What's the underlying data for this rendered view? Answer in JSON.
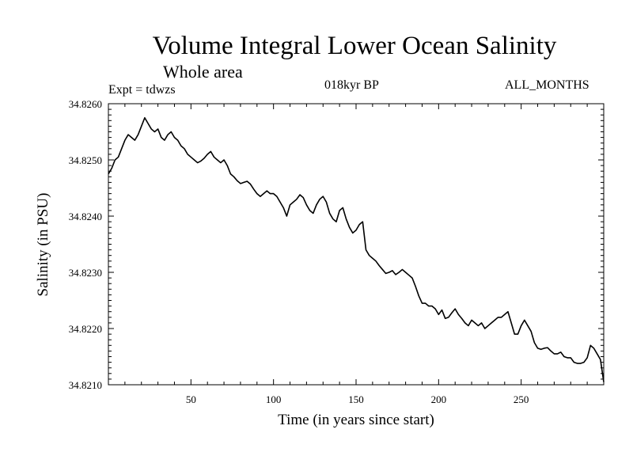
{
  "header": {
    "title": "Volume Integral Lower Ocean Salinity",
    "subtitle": "Whole area",
    "experiment": "Expt = tdwzs",
    "period": "018kyr BP",
    "months": "ALL_MONTHS"
  },
  "chart_data": {
    "type": "line",
    "title": "Volume Integral Lower Ocean Salinity",
    "xlabel": "Time (in years since start)",
    "ylabel": "Salinity (in PSU)",
    "xlim": [
      0,
      300
    ],
    "ylim": [
      34.821,
      34.826
    ],
    "x_ticks": [
      50,
      100,
      150,
      200,
      250
    ],
    "y_ticks": [
      34.821,
      34.822,
      34.823,
      34.824,
      34.825,
      34.826
    ],
    "y_tick_labels": [
      "34.8210",
      "34.8220",
      "34.8230",
      "34.8240",
      "34.8250",
      "34.8260"
    ],
    "grid": false,
    "series": [
      {
        "x": [
          0,
          2,
          4,
          6,
          8,
          10,
          12,
          14,
          16,
          18,
          20,
          22,
          24,
          26,
          28,
          30,
          32,
          34,
          36,
          38,
          40,
          42,
          44,
          46,
          48,
          50,
          52,
          54,
          56,
          58,
          60,
          62,
          64,
          66,
          68,
          70,
          72,
          74,
          76,
          78,
          80,
          82,
          84,
          86,
          88,
          90,
          92,
          94,
          96,
          98,
          100,
          102,
          104,
          106,
          108,
          110,
          112,
          114,
          116,
          118,
          120,
          122,
          124,
          126,
          128,
          130,
          132,
          134,
          136,
          138,
          140,
          142,
          144,
          146,
          148,
          150,
          152,
          154,
          156,
          158,
          160,
          162,
          164,
          166,
          168,
          170,
          172,
          174,
          176,
          178,
          180,
          182,
          184,
          186,
          188,
          190,
          192,
          194,
          196,
          198,
          200,
          202,
          204,
          206,
          208,
          210,
          212,
          214,
          216,
          218,
          220,
          222,
          224,
          226,
          228,
          230,
          232,
          234,
          236,
          238,
          240,
          242,
          244,
          246,
          248,
          250,
          252,
          254,
          256,
          258,
          260,
          262,
          264,
          266,
          268,
          270,
          272,
          274,
          276,
          278,
          280,
          282,
          284,
          286,
          288,
          290,
          292,
          294,
          296,
          298,
          300
        ],
        "values": [
          34.82475,
          34.82485,
          34.825,
          34.82505,
          34.8252,
          34.82535,
          34.82545,
          34.8254,
          34.82535,
          34.82545,
          34.8256,
          34.82575,
          34.82565,
          34.82555,
          34.8255,
          34.82555,
          34.8254,
          34.82535,
          34.82545,
          34.8255,
          34.8254,
          34.82535,
          34.82525,
          34.8252,
          34.8251,
          34.82505,
          34.825,
          34.82495,
          34.82498,
          34.82503,
          34.8251,
          34.82515,
          34.82505,
          34.825,
          34.82495,
          34.825,
          34.8249,
          34.82475,
          34.8247,
          34.82463,
          34.82458,
          34.8246,
          34.82462,
          34.82457,
          34.82448,
          34.8244,
          34.82435,
          34.8244,
          34.82445,
          34.8244,
          34.8244,
          34.82435,
          34.82425,
          34.82415,
          34.824,
          34.8242,
          34.82425,
          34.8243,
          34.82438,
          34.82433,
          34.8242,
          34.8241,
          34.82405,
          34.8242,
          34.8243,
          34.82435,
          34.82425,
          34.82405,
          34.82395,
          34.8239,
          34.8241,
          34.82415,
          34.82395,
          34.8238,
          34.8237,
          34.82375,
          34.82385,
          34.8239,
          34.8234,
          34.8233,
          34.82325,
          34.8232,
          34.82312,
          34.82305,
          34.82298,
          34.823,
          34.82303,
          34.82296,
          34.823,
          34.82305,
          34.823,
          34.82295,
          34.8229,
          34.82275,
          34.82258,
          34.82245,
          34.82245,
          34.8224,
          34.8224,
          34.82235,
          34.82225,
          34.82233,
          34.82218,
          34.8222,
          34.82228,
          34.82235,
          34.82225,
          34.82218,
          34.8221,
          34.82205,
          34.82215,
          34.8221,
          34.82205,
          34.8221,
          34.822,
          34.82205,
          34.8221,
          34.82215,
          34.8222,
          34.8222,
          34.82225,
          34.8223,
          34.8221,
          34.8219,
          34.8219,
          34.82205,
          34.82215,
          34.82205,
          34.82195,
          34.82175,
          34.82165,
          34.82163,
          34.82165,
          34.82166,
          34.8216,
          34.82155,
          34.82155,
          34.82158,
          34.8215,
          34.82148,
          34.82148,
          34.8214,
          34.82138,
          34.82138,
          34.8214,
          34.82148,
          34.8217,
          34.82165,
          34.82155,
          34.82145,
          34.82105
        ]
      }
    ]
  }
}
